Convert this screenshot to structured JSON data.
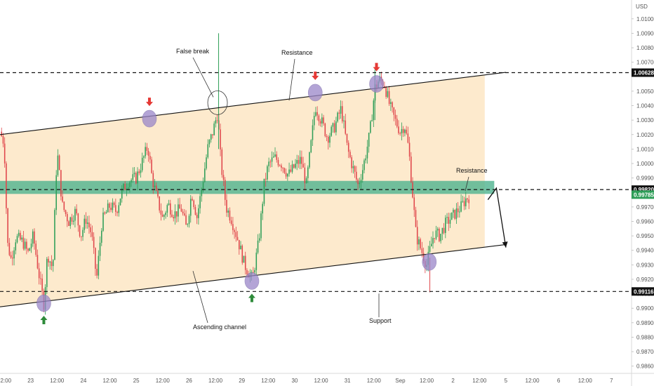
{
  "chart_data": {
    "type": "candlestick",
    "currency": "USD",
    "colors": {
      "up": "#26a69a",
      "up_fill": "#2e9e58",
      "down": "#e0464b",
      "channel_fill": "#fde6c4",
      "zone_fill": "#4db38e",
      "circle_fill": "#9a86c9",
      "arrow_up": "#2e8b3a",
      "arrow_down": "#e53935"
    },
    "y_ticks": [
      "1.01000",
      "1.00900",
      "1.00800",
      "1.00700",
      "1.00500",
      "1.00400",
      "1.00300",
      "1.00200",
      "1.00100",
      "1.00000",
      "0.99900",
      "0.99700",
      "0.99600",
      "0.99500",
      "0.99400",
      "0.99300",
      "0.99200",
      "0.99100",
      "0.99000",
      "0.98900",
      "0.98800",
      "0.98700",
      "0.98600"
    ],
    "x_ticks": [
      "12:00",
      "23",
      "12:00",
      "24",
      "12:00",
      "25",
      "12:00",
      "26",
      "12:00",
      "29",
      "12:00",
      "30",
      "12:00",
      "31",
      "12:00",
      "Sep",
      "12:00",
      "2",
      "12:00",
      "5",
      "12:00",
      "6",
      "12:00",
      "7"
    ],
    "x_tick_pos": [
      0.5,
      1,
      1.5,
      2,
      2.5,
      3,
      3.5,
      4,
      4.5,
      5,
      5.5,
      6,
      6.5,
      7,
      7.5,
      8,
      8.5,
      9,
      9.5,
      10,
      10.5,
      11,
      11.5,
      12
    ],
    "ylim": [
      0.9855,
      1.0113
    ],
    "xlim": [
      0.42,
      12.38
    ],
    "price_tags": {
      "resistance_high": "1.00628",
      "resistance_mid": "0.99820",
      "current": "0.99785",
      "support": "0.99116"
    },
    "levels": {
      "resistance_high": 1.00628,
      "resistance_mid": 0.9982,
      "support": 0.99116,
      "zone_top": 0.9988,
      "zone_bottom": 0.9979
    },
    "channel": {
      "upper": [
        [
          0.42,
          1.002
        ],
        [
          10.0,
          1.0063
        ]
      ],
      "lower": [
        [
          0.42,
          0.9901
        ],
        [
          10.0,
          0.9944
        ]
      ]
    },
    "forecast": [
      [
        9.66,
        0.9975
      ],
      [
        9.82,
        0.9983
      ],
      [
        10.0,
        0.9942
      ]
    ],
    "annotations": {
      "false_break": "False break",
      "resistance_top": "Resistance",
      "resistance_mid": "Resistance",
      "ascending_channel": "Ascending channel",
      "support": "Support"
    },
    "touches": [
      {
        "x": 1.25,
        "y": 0.99035,
        "arrow": "up"
      },
      {
        "x": 3.25,
        "y": 1.0031,
        "arrow": "down"
      },
      {
        "x": 5.19,
        "y": 0.99188,
        "arrow": "up"
      },
      {
        "x": 6.39,
        "y": 1.0049,
        "arrow": "down"
      },
      {
        "x": 7.55,
        "y": 1.0055,
        "arrow": "down"
      },
      {
        "x": 8.55,
        "y": 0.9932,
        "arrow": "none"
      }
    ],
    "false_break_circle": {
      "x": 4.54,
      "y": 1.0042
    },
    "keypoints": [
      [
        0.42,
        1.0022
      ],
      [
        0.5,
        1.0014
      ],
      [
        0.56,
        0.9945
      ],
      [
        0.63,
        0.9934
      ],
      [
        0.72,
        0.9949
      ],
      [
        0.85,
        0.9946
      ],
      [
        0.95,
        0.9938
      ],
      [
        1.05,
        0.995
      ],
      [
        1.15,
        0.9925
      ],
      [
        1.25,
        0.9903
      ],
      [
        1.32,
        0.9938
      ],
      [
        1.42,
        0.9927
      ],
      [
        1.5,
        1.001
      ],
      [
        1.6,
        0.9971
      ],
      [
        1.72,
        0.996
      ],
      [
        1.85,
        0.9967
      ],
      [
        1.95,
        0.995
      ],
      [
        2.05,
        0.9962
      ],
      [
        2.15,
        0.9952
      ],
      [
        2.25,
        0.992
      ],
      [
        2.35,
        0.996
      ],
      [
        2.5,
        0.9971
      ],
      [
        2.62,
        0.9967
      ],
      [
        2.72,
        0.998
      ],
      [
        2.85,
        0.9988
      ],
      [
        3.0,
        0.999
      ],
      [
        3.1,
        1.0
      ],
      [
        3.22,
        1.0012
      ],
      [
        3.3,
        0.999
      ],
      [
        3.4,
        0.9975
      ],
      [
        3.5,
        0.9962
      ],
      [
        3.6,
        0.9972
      ],
      [
        3.72,
        0.9965
      ],
      [
        3.85,
        0.9969
      ],
      [
        3.95,
        0.9955
      ],
      [
        4.05,
        0.998
      ],
      [
        4.15,
        0.9963
      ],
      [
        4.25,
        0.9985
      ],
      [
        4.35,
        1.001
      ],
      [
        4.45,
        1.0022
      ],
      [
        4.54,
        1.0035
      ],
      [
        4.6,
        1.0002
      ],
      [
        4.7,
        0.997
      ],
      [
        4.8,
        0.9962
      ],
      [
        4.92,
        0.9948
      ],
      [
        5.05,
        0.993
      ],
      [
        5.2,
        0.992
      ],
      [
        5.32,
        0.9946
      ],
      [
        5.42,
        0.9985
      ],
      [
        5.5,
        0.9999
      ],
      [
        5.62,
        1.0004
      ],
      [
        5.75,
        1.0
      ],
      [
        5.88,
        0.9992
      ],
      [
        6.0,
        0.9998
      ],
      [
        6.12,
        1.0003
      ],
      [
        6.22,
        0.9985
      ],
      [
        6.3,
        1.001
      ],
      [
        6.39,
        1.004
      ],
      [
        6.5,
        1.003
      ],
      [
        6.62,
        1.0018
      ],
      [
        6.75,
        1.0025
      ],
      [
        6.88,
        1.0038
      ],
      [
        7.0,
        1.001
      ],
      [
        7.12,
        0.9995
      ],
      [
        7.2,
        0.9985
      ],
      [
        7.3,
        0.9998
      ],
      [
        7.42,
        1.002
      ],
      [
        7.52,
        1.0052
      ],
      [
        7.6,
        1.0058
      ],
      [
        7.7,
        1.0055
      ],
      [
        7.8,
        1.004
      ],
      [
        7.9,
        1.003
      ],
      [
        8.0,
        1.0022
      ],
      [
        8.08,
        1.0027
      ],
      [
        8.16,
        1.001
      ],
      [
        8.22,
        0.9985
      ],
      [
        8.3,
        0.995
      ],
      [
        8.4,
        0.994
      ],
      [
        8.5,
        0.993
      ],
      [
        8.56,
        0.994
      ],
      [
        8.64,
        0.9952
      ],
      [
        8.75,
        0.995
      ],
      [
        8.85,
        0.9958
      ],
      [
        8.95,
        0.9962
      ],
      [
        9.05,
        0.9966
      ],
      [
        9.15,
        0.997
      ],
      [
        9.25,
        0.9976
      ],
      [
        9.3,
        0.9977
      ]
    ]
  }
}
